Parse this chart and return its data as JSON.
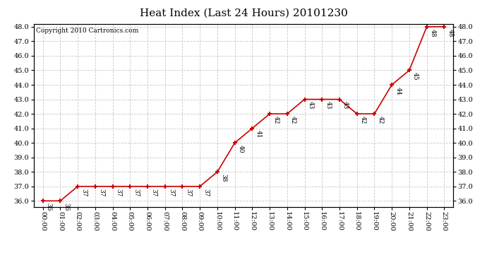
{
  "title": "Heat Index (Last 24 Hours) 20101230",
  "copyright": "Copyright 2010 Cartronics.com",
  "x_labels": [
    "00:00",
    "01:00",
    "02:00",
    "03:00",
    "04:00",
    "05:00",
    "06:00",
    "07:00",
    "08:00",
    "09:00",
    "10:00",
    "11:00",
    "12:00",
    "13:00",
    "14:00",
    "15:00",
    "16:00",
    "17:00",
    "18:00",
    "19:00",
    "20:00",
    "21:00",
    "22:00",
    "23:00"
  ],
  "y_values": [
    36,
    36,
    37,
    37,
    37,
    37,
    37,
    37,
    37,
    37,
    38,
    40,
    41,
    42,
    42,
    43,
    43,
    43,
    42,
    42,
    44,
    45,
    48,
    48
  ],
  "ylim_min": 35.6,
  "ylim_max": 48.2,
  "ytick_min": 36.0,
  "ytick_max": 48.0,
  "ytick_step": 1.0,
  "line_color": "#cc0000",
  "marker": "+",
  "marker_color": "#cc0000",
  "bg_color": "#ffffff",
  "grid_color": "#c8c8c8",
  "annotation_color": "#000000",
  "title_fontsize": 11,
  "copyright_fontsize": 6.5,
  "label_fontsize": 7,
  "annotation_fontsize": 6.5,
  "fig_width": 6.9,
  "fig_height": 3.75,
  "fig_dpi": 100
}
